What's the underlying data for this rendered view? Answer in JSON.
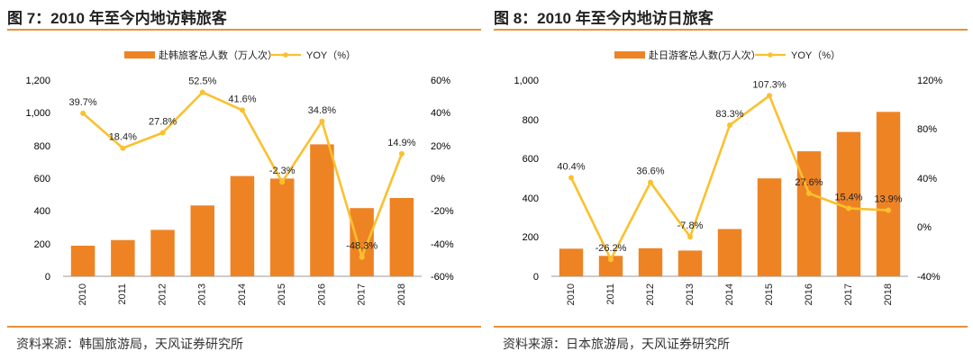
{
  "colors": {
    "bar": "#ee8324",
    "line": "#fbc02d",
    "accent_rule": "#e8913a"
  },
  "charts": {
    "korea": {
      "title": "图 7：2010 年至今内地访韩旅客",
      "source": "资料来源：韩国旅游局，天风证券研究所",
      "legend": {
        "bar": "赴韩旅客总人数（万人次）",
        "line": "YOY（%）"
      },
      "left_ticks": [
        "1,200",
        "1,000",
        "800",
        "600",
        "400",
        "200",
        "0"
      ],
      "right_ticks": [
        "60%",
        "40%",
        "20%",
        "0%",
        "-20%",
        "-40%",
        "-60%"
      ],
      "yoy_labels": [
        "39.7%",
        "18.4%",
        "27.8%",
        "52.5%",
        "41.6%",
        "-2.3%",
        "34.8%",
        "-48.3%",
        "14.9%"
      ]
    },
    "japan": {
      "title": "图 8：2010 年至今内地访日旅客",
      "source": "资料来源：日本旅游局，天风证券研究所",
      "legend": {
        "bar": "赴日游客总人数(万人次）",
        "line": "YOY（%）"
      },
      "left_ticks": [
        "1,000",
        "800",
        "600",
        "400",
        "200",
        "0"
      ],
      "right_ticks": [
        "120%",
        "80%",
        "40%",
        "0%",
        "-40%"
      ],
      "yoy_labels": [
        "40.4%",
        "-26.2%",
        "36.6%",
        "-7.8%",
        "83.3%",
        "107.3%",
        "27.6%",
        "15.4%",
        "13.9%"
      ]
    }
  },
  "chart_data": [
    {
      "type": "bar",
      "title": "图 7：2010 年至今内地访韩旅客",
      "categories": [
        "2010",
        "2011",
        "2012",
        "2013",
        "2014",
        "2015",
        "2016",
        "2017",
        "2018"
      ],
      "series": [
        {
          "name": "赴韩旅客总人数（万人次）",
          "type": "bar",
          "axis": "left",
          "values": [
            187,
            222,
            284,
            433,
            613,
            598,
            807,
            417,
            479
          ]
        },
        {
          "name": "YOY（%）",
          "type": "line",
          "axis": "right",
          "values": [
            39.7,
            18.4,
            27.8,
            52.5,
            41.6,
            -2.3,
            34.8,
            -48.3,
            14.9
          ]
        }
      ],
      "ylim_left": [
        0,
        1200
      ],
      "ylim_right": [
        -60,
        60
      ],
      "legend": "top-center"
    },
    {
      "type": "bar",
      "title": "图 8：2010 年至今内地访日旅客",
      "categories": [
        "2010",
        "2011",
        "2012",
        "2013",
        "2014",
        "2015",
        "2016",
        "2017",
        "2018"
      ],
      "series": [
        {
          "name": "赴日游客总人数(万人次）",
          "type": "bar",
          "axis": "left",
          "values": [
            141,
            104,
            143,
            131,
            241,
            499,
            637,
            736,
            838
          ]
        },
        {
          "name": "YOY（%）",
          "type": "line",
          "axis": "right",
          "values": [
            40.4,
            -26.2,
            36.6,
            -7.8,
            83.3,
            107.3,
            27.6,
            15.4,
            13.9
          ]
        }
      ],
      "ylim_left": [
        0,
        1000
      ],
      "ylim_right": [
        -40,
        120
      ],
      "legend": "top-center"
    }
  ]
}
